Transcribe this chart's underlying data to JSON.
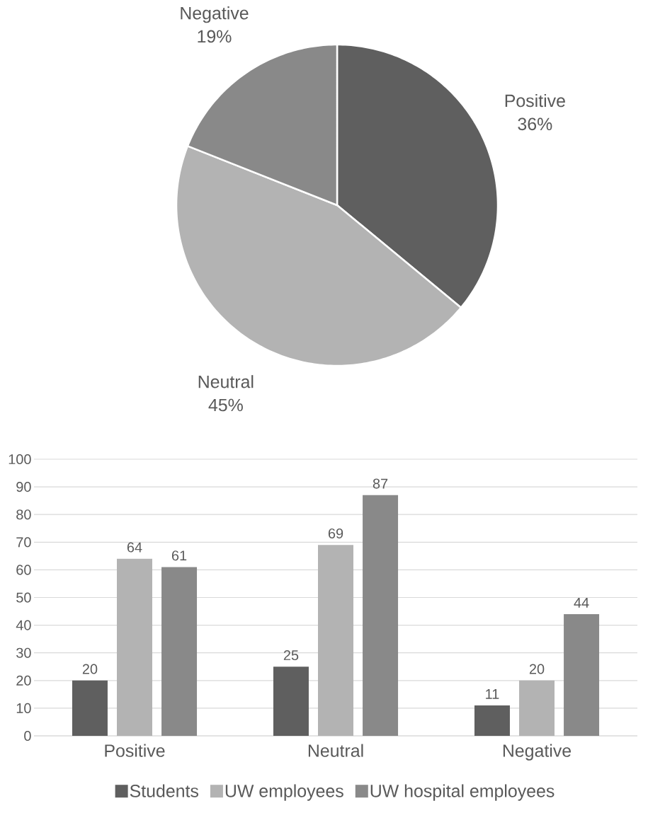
{
  "chart_data": [
    {
      "type": "pie",
      "categories": [
        "Positive",
        "Neutral",
        "Negative"
      ],
      "values": [
        36,
        45,
        19
      ],
      "value_labels": [
        "36%",
        "45%",
        "19%"
      ],
      "colors": [
        "#5f5f5f",
        "#b3b3b3",
        "#898989"
      ]
    },
    {
      "type": "bar",
      "categories": [
        "Positive",
        "Neutral",
        "Negative"
      ],
      "series": [
        {
          "name": "Students",
          "color": "#5f5f5f",
          "values": [
            20,
            25,
            11
          ]
        },
        {
          "name": "UW employees",
          "color": "#b3b3b3",
          "values": [
            64,
            69,
            20
          ]
        },
        {
          "name": "UW hospital employees",
          "color": "#898989",
          "values": [
            61,
            87,
            44
          ]
        }
      ],
      "ylim": [
        0,
        100
      ],
      "yticks": [
        0,
        10,
        20,
        30,
        40,
        50,
        60,
        70,
        80,
        90,
        100
      ],
      "grid": "y",
      "legend": "bottom",
      "data_labels": true
    }
  ]
}
